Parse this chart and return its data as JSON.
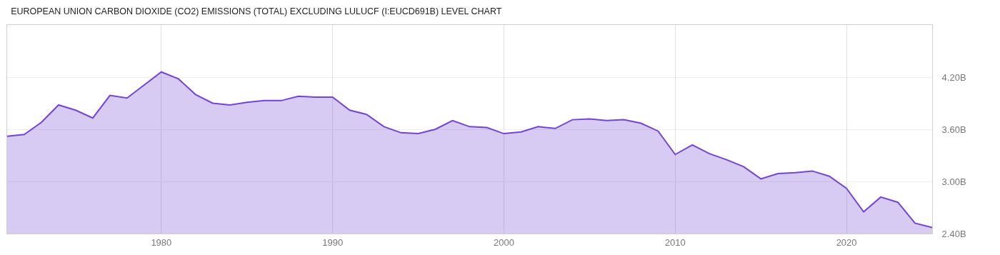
{
  "chart_data": {
    "type": "area",
    "title": "EUROPEAN UNION CARBON DIOXIDE (CO2) EMISSIONS (TOTAL) EXCLUDING LULUCF (I:EUCD691B) LEVEL CHART",
    "x": [
      1971,
      1972,
      1973,
      1974,
      1975,
      1976,
      1977,
      1978,
      1979,
      1980,
      1981,
      1982,
      1983,
      1984,
      1985,
      1986,
      1987,
      1988,
      1989,
      1990,
      1991,
      1992,
      1993,
      1994,
      1995,
      1996,
      1997,
      1998,
      1999,
      2000,
      2001,
      2002,
      2003,
      2004,
      2005,
      2006,
      2007,
      2008,
      2009,
      2010,
      2011,
      2012,
      2013,
      2014,
      2015,
      2016,
      2017,
      2018,
      2019,
      2020,
      2021,
      2022,
      2023,
      2024,
      2025
    ],
    "series": [
      {
        "color": "#7444d4",
        "values": [
          3.52,
          3.54,
          3.68,
          3.88,
          3.82,
          3.73,
          3.99,
          3.96,
          4.11,
          4.26,
          4.18,
          4.0,
          3.9,
          3.88,
          3.91,
          3.93,
          3.93,
          3.98,
          3.97,
          3.97,
          3.82,
          3.77,
          3.63,
          3.56,
          3.55,
          3.6,
          3.7,
          3.63,
          3.62,
          3.55,
          3.57,
          3.63,
          3.61,
          3.71,
          3.72,
          3.7,
          3.71,
          3.67,
          3.58,
          3.31,
          3.42,
          3.32,
          3.25,
          3.17,
          3.03,
          3.09,
          3.1,
          3.12,
          3.06,
          2.92,
          2.65,
          2.82,
          2.76,
          2.52,
          2.47
        ]
      }
    ],
    "xlim": [
      1971,
      2025
    ],
    "ylim": [
      2.4,
      4.8
    ],
    "xticks": [
      1980,
      1990,
      2000,
      2010,
      2020
    ],
    "yticks": [
      {
        "value": 2.4,
        "label": "2.40B"
      },
      {
        "value": 3.0,
        "label": "3.00B"
      },
      {
        "value": 3.6,
        "label": "3.60B"
      },
      {
        "value": 4.2,
        "label": "4.20B"
      }
    ],
    "grid": true,
    "legend": false
  }
}
